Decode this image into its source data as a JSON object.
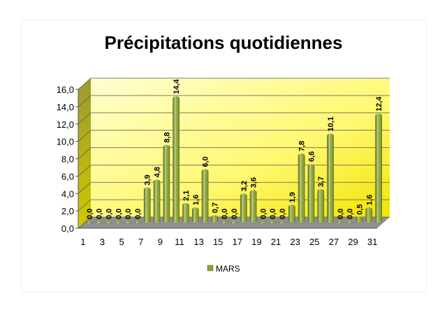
{
  "chart_data": {
    "type": "bar",
    "title": "Précipitations quotidiennes",
    "categories": [
      "1",
      null,
      "3",
      null,
      "5",
      null,
      "7",
      null,
      "9",
      null,
      "11",
      null,
      "13",
      null,
      "15",
      null,
      "17",
      null,
      "19",
      null,
      "21",
      null,
      "23",
      null,
      "25",
      null,
      "27",
      null,
      "29",
      null,
      "31"
    ],
    "series": [
      {
        "name": "MARS",
        "color": "#8ba52b",
        "values": [
          0,
          0,
          0,
          0,
          0,
          0,
          3.9,
          4.8,
          8.8,
          14.4,
          2.1,
          1.6,
          6.0,
          0.7,
          0,
          0,
          3.2,
          3.6,
          0,
          0,
          0,
          1.9,
          7.8,
          6.6,
          3.7,
          10.1,
          0,
          0,
          0.5,
          1.6,
          12.4
        ],
        "value_labels": [
          "0,0",
          "0,0",
          "0,0",
          "0,0",
          "0,0",
          "0,0",
          "3,9",
          "4,8",
          "8,8",
          "14,4",
          "2,1",
          "1,6",
          "6,0",
          "0,7",
          "0,0",
          "0,0",
          "3,2",
          "3,6",
          "0,0",
          "0,0",
          "0,0",
          "1,9",
          "7,8",
          "6,6",
          "3,7",
          "10,1",
          "0,0",
          "0,0",
          "0,5",
          "1,6",
          "12,4"
        ]
      }
    ],
    "ylim": [
      0,
      16
    ],
    "yticks": [
      {
        "value": 0,
        "label": "0,0"
      },
      {
        "value": 2,
        "label": "2,0"
      },
      {
        "value": 4,
        "label": "4,0"
      },
      {
        "value": 6,
        "label": "6,0"
      },
      {
        "value": 8,
        "label": "8,0"
      },
      {
        "value": 10,
        "label": "10,0"
      },
      {
        "value": 12,
        "label": "12,0"
      },
      {
        "value": 14,
        "label": "14,0"
      },
      {
        "value": 16,
        "label": "16,0"
      }
    ],
    "grid": true,
    "legend": "bottom"
  }
}
